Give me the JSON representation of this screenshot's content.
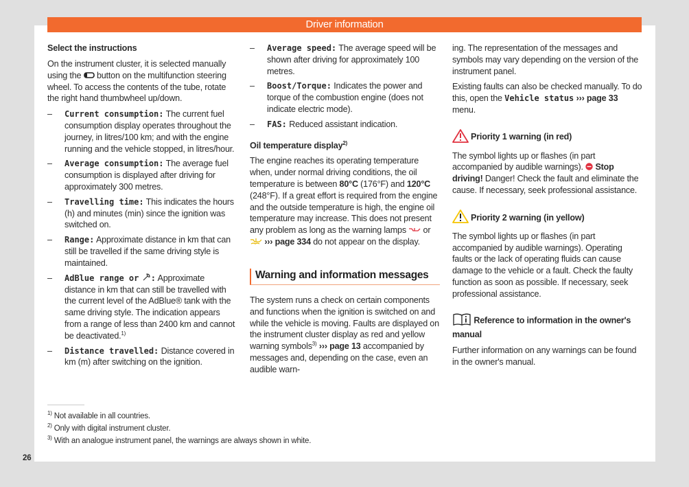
{
  "header": {
    "title": "Driver information"
  },
  "col1": {
    "heading": "Select the instructions",
    "intro_a": "On the instrument cluster, it is selected manually using the",
    "intro_b": "button on the multifunction steering wheel. To access the contents of the tube, rotate the right hand thumbwheel up/down.",
    "items": [
      {
        "term": "Current consumption:",
        "text": "The current fuel consumption display operates throughout the journey, in litres/100 km; and with the engine running and the vehicle stopped, in litres/hour."
      },
      {
        "term": "Average consumption:",
        "text": "The average fuel consumption is displayed after driving for approximately 300 metres."
      },
      {
        "term": "Travelling time:",
        "text": "This indicates the hours (h) and minutes (min) since the ignition was switched on."
      },
      {
        "term": "Range:",
        "text": "Approximate distance in km that can still be travelled if the same driving style is maintained."
      },
      {
        "term": "AdBlue range or",
        "term_end": ":",
        "text": "Approximate distance in km that can still be travelled with the current level of the AdBlue® tank with the same driving style. The indication appears from a range of less than 2400 km and cannot be deactivated.",
        "sup": "1)"
      },
      {
        "term": "Distance travelled:",
        "text": "Distance covered in km (m) after switching on the ignition."
      }
    ]
  },
  "col2": {
    "items": [
      {
        "term": "Average speed:",
        "text": "The average speed will be shown after driving for approximately 100 metres."
      },
      {
        "term": "Boost/Torque:",
        "text": "Indicates the power and torque of the combustion engine (does not indicate electric mode)."
      },
      {
        "term": "FAS:",
        "text": "Reduced assistant indication."
      }
    ],
    "oil_heading": "Oil temperature display",
    "oil_sup": "2)",
    "oil_a": "The engine reaches its operating temperature when, under normal driving conditions, the oil temperature is between ",
    "oil_t1": "80°C",
    "oil_b": " (176°F) and ",
    "oil_t2": "120°C",
    "oil_c": " (248°F). If a great effort is required from the engine and the outside temperature is high, the engine oil temperature may increase. This does not present any problem as long as the warning lamps ",
    "oil_or": " or ",
    "oil_link": "››› page 334",
    "oil_d": " do not appear on the display.",
    "section_title": "Warning and information messages",
    "warn_a": "The system runs a check on certain components and functions when the ignition is switched on and while the vehicle is moving. Faults are displayed on the instrument cluster display as red and yellow warning symbols",
    "warn_sup": "3)",
    "warn_link": "››› page 13",
    "warn_b": " accompanied by messages and, depending on the case, even an audible warn-"
  },
  "col3": {
    "cont": "ing. The representation of the messages and symbols may vary depending on the version of the instrument panel.",
    "faults_a": "Existing faults can also be checked manually. To do this, open the ",
    "faults_mono": "Vehicle status",
    "faults_link": "››› page 33",
    "faults_b": " menu.",
    "p1_heading": "Priority 1 warning (in red)",
    "p1_a": "The symbol lights up or flashes (in part accompanied by audible warnings). ",
    "p1_bold": "Stop driving!",
    "p1_b": " Danger! Check the fault and eliminate the cause. If necessary, seek professional assistance.",
    "p2_heading": "Priority 2 warning (in yellow)",
    "p2_text": "The symbol lights up or flashes (in part accompanied by audible warnings). Operating faults or the lack of operating fluids can cause damage to the vehicle or a fault. Check the faulty function as soon as possible. If necessary, seek professional assistance.",
    "ref_heading": "Reference to information in the owner's manual",
    "ref_text": "Further information on any warnings can be found in the owner's manual."
  },
  "footnotes": [
    {
      "mark": "1)",
      "text": "Not available in all countries."
    },
    {
      "mark": "2)",
      "text": "Only with digital instrument cluster."
    },
    {
      "mark": "3)",
      "text": "With an analogue instrument panel, the warnings are always shown in white."
    }
  ],
  "page_number": "26",
  "colors": {
    "accent": "#f26a2e",
    "red": "#e0303e",
    "yellow": "#f5c400"
  },
  "icons": [
    "view-button-icon",
    "adblue-icon",
    "oil-temperature-red-icon",
    "oil-temperature-yellow-icon",
    "warning-triangle-red-icon",
    "warning-triangle-yellow-icon",
    "stop-icon",
    "book-info-icon"
  ]
}
